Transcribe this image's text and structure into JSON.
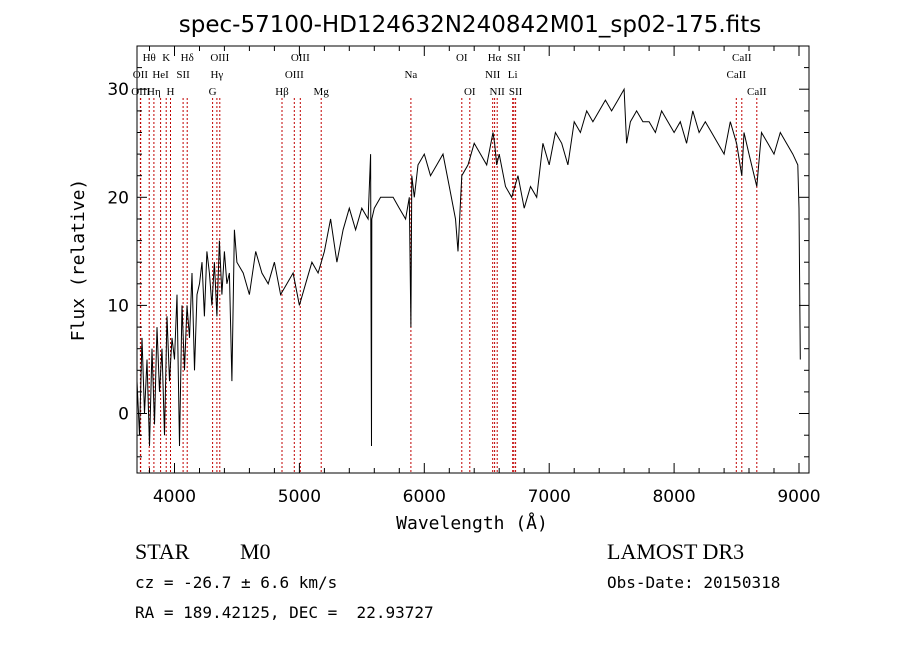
{
  "chart_data": {
    "type": "line",
    "title": "spec-57100-HD124632N240842M01_sp02-175.fits",
    "xlabel": "Wavelength (Å)",
    "ylabel": "Flux (relative)",
    "xlim": [
      3700,
      9080
    ],
    "ylim": [
      -5.5,
      34
    ],
    "x_ticks": [
      4000,
      5000,
      6000,
      7000,
      8000,
      9000
    ],
    "y_ticks": [
      0,
      10,
      20,
      30
    ],
    "series": [
      {
        "name": "flux",
        "x": [
          3700,
          3720,
          3740,
          3760,
          3780,
          3800,
          3820,
          3840,
          3860,
          3880,
          3900,
          3920,
          3940,
          3960,
          3980,
          4000,
          4020,
          4040,
          4060,
          4080,
          4100,
          4120,
          4140,
          4160,
          4180,
          4200,
          4220,
          4240,
          4260,
          4280,
          4300,
          4320,
          4340,
          4360,
          4380,
          4400,
          4420,
          4440,
          4460,
          4480,
          4500,
          4550,
          4600,
          4650,
          4700,
          4750,
          4800,
          4850,
          4900,
          4950,
          5000,
          5050,
          5100,
          5150,
          5200,
          5250,
          5300,
          5350,
          5400,
          5450,
          5500,
          5550,
          5570,
          5577,
          5580,
          5600,
          5650,
          5700,
          5750,
          5800,
          5850,
          5880,
          5893,
          5900,
          5920,
          5950,
          6000,
          6050,
          6100,
          6150,
          6200,
          6250,
          6270,
          6300,
          6350,
          6400,
          6450,
          6500,
          6550,
          6563,
          6580,
          6600,
          6650,
          6700,
          6750,
          6800,
          6850,
          6900,
          6950,
          7000,
          7050,
          7100,
          7150,
          7200,
          7250,
          7300,
          7350,
          7400,
          7450,
          7500,
          7550,
          7600,
          7620,
          7650,
          7700,
          7750,
          7800,
          7850,
          7900,
          7950,
          8000,
          8050,
          8100,
          8150,
          8200,
          8250,
          8300,
          8350,
          8400,
          8450,
          8500,
          8542,
          8560,
          8600,
          8662,
          8700,
          8750,
          8800,
          8850,
          8900,
          8950,
          8990,
          9000,
          9010
        ],
        "values": [
          3,
          -2,
          7,
          0,
          5,
          -3,
          6,
          -1,
          8,
          2,
          6,
          -2,
          9,
          3,
          7,
          5,
          11,
          -3,
          10,
          4,
          10,
          7,
          13,
          4,
          11,
          12,
          14,
          9,
          15,
          13,
          10,
          14,
          9,
          16,
          11,
          15,
          12,
          13,
          3,
          17,
          14,
          13,
          11,
          15,
          13,
          12,
          14,
          11,
          12,
          13,
          10,
          12,
          14,
          13,
          15,
          18,
          14,
          17,
          19,
          17,
          19,
          18,
          24,
          -3,
          18,
          19,
          20,
          20,
          20,
          19,
          18,
          20,
          8,
          22,
          20,
          23,
          24,
          22,
          23,
          24,
          21,
          18,
          15,
          22,
          23,
          25,
          24,
          23,
          26,
          25,
          23,
          24,
          21,
          20,
          22,
          19,
          21,
          20,
          25,
          23,
          26,
          25,
          23,
          27,
          26,
          28,
          27,
          28,
          29,
          28,
          29,
          30,
          25,
          27,
          28,
          27,
          27,
          26,
          28,
          27,
          26,
          27,
          25,
          28,
          26,
          27,
          26,
          25,
          24,
          27,
          25,
          22,
          26,
          24,
          21,
          26,
          25,
          24,
          26,
          25,
          24,
          23,
          19,
          5
        ],
        "color": "#000000"
      }
    ],
    "line_labels": [
      {
        "label": "Hθ",
        "row": 1,
        "x": 3798
      },
      {
        "label": "OII",
        "row": 2,
        "x": 3727
      },
      {
        "label": "OIII",
        "row": 3,
        "x": 3730
      },
      {
        "label": "K",
        "row": 1,
        "x": 3934
      },
      {
        "label": "HeI",
        "row": 2,
        "x": 3889
      },
      {
        "label": "Hη",
        "row": 3,
        "x": 3835
      },
      {
        "label": "SII",
        "row": 2,
        "x": 4069
      },
      {
        "label": "H",
        "row": 3,
        "x": 3968
      },
      {
        "label": "Hδ",
        "row": 1,
        "x": 4102
      },
      {
        "label": "OIII",
        "row": 1,
        "x": 4363
      },
      {
        "label": "Hγ",
        "row": 2,
        "x": 4340
      },
      {
        "label": "G",
        "row": 3,
        "x": 4305
      },
      {
        "label": "OIII",
        "row": 1,
        "x": 5007
      },
      {
        "label": "OIII",
        "row": 2,
        "x": 4959
      },
      {
        "label": "Hβ",
        "row": 3,
        "x": 4861
      },
      {
        "label": "Mg",
        "row": 3,
        "x": 5175
      },
      {
        "label": "Na",
        "row": 2,
        "x": 5893
      },
      {
        "label": "OI",
        "row": 1,
        "x": 6300
      },
      {
        "label": "OI",
        "row": 3,
        "x": 6364
      },
      {
        "label": "Hα",
        "row": 1,
        "x": 6563
      },
      {
        "label": "NII",
        "row": 2,
        "x": 6548
      },
      {
        "label": "NII",
        "row": 3,
        "x": 6584
      },
      {
        "label": "SII",
        "row": 1,
        "x": 6717
      },
      {
        "label": "Li",
        "row": 2,
        "x": 6708
      },
      {
        "label": "SII",
        "row": 3,
        "x": 6731
      },
      {
        "label": "CaII",
        "row": 1,
        "x": 8542
      },
      {
        "label": "CaII",
        "row": 2,
        "x": 8498
      },
      {
        "label": "CaII",
        "row": 3,
        "x": 8662
      }
    ],
    "marker_lines": [
      3727,
      3730,
      3798,
      3835,
      3889,
      3934,
      3968,
      4069,
      4102,
      4305,
      4340,
      4363,
      4861,
      4959,
      5007,
      5175,
      5893,
      6300,
      6364,
      6548,
      6563,
      6584,
      6708,
      6717,
      6731,
      8498,
      8542,
      8662
    ],
    "line_color": "#c00000"
  },
  "info": {
    "object_class": "STAR",
    "subclass": "M0",
    "survey": "LAMOST DR3",
    "cz": "cz = -26.7 ± 6.6 km/s",
    "obs_date": "Obs-Date: 20150318",
    "coords": "RA = 189.42125, DEC =  22.93727"
  }
}
